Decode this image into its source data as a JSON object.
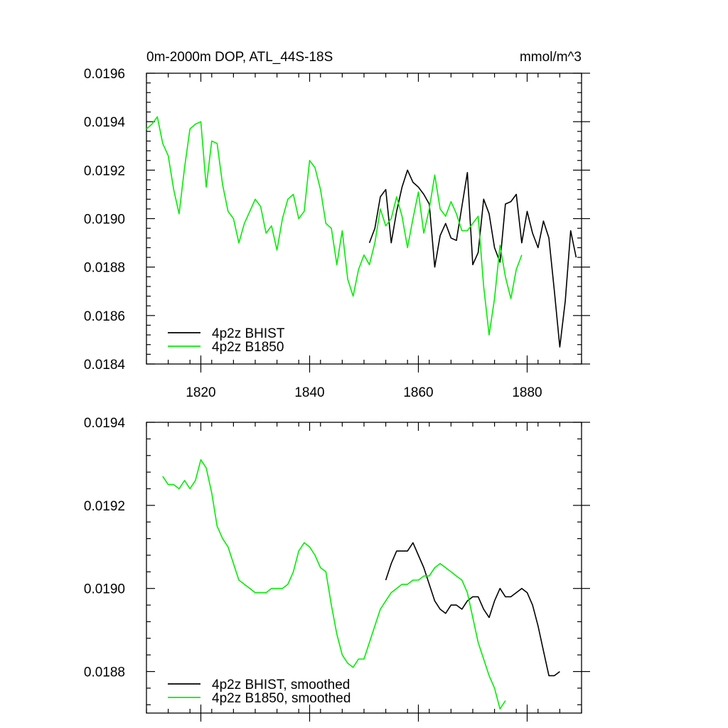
{
  "chart_data": [
    {
      "type": "line",
      "title": "0m-2000m DOP, ATL_44S-18S",
      "units": "mmol/m^3",
      "xlim": [
        1810,
        1890
      ],
      "ylim": [
        0.0184,
        0.0196
      ],
      "xticks": [
        1820,
        1840,
        1860,
        1880
      ],
      "yticks": [
        0.0184,
        0.0186,
        0.0188,
        0.019,
        0.0192,
        0.0194,
        0.0196
      ],
      "ytick_labels": [
        "0.0184",
        "0.0186",
        "0.0188",
        "0.0190",
        "0.0192",
        "0.0194",
        "0.0196"
      ],
      "legend_position": "bottom-left",
      "series": [
        {
          "name": "4p2z BHIST",
          "color": "#000000",
          "x": [
            1851,
            1852,
            1853,
            1854,
            1855,
            1856,
            1857,
            1858,
            1859,
            1860,
            1861,
            1862,
            1863,
            1864,
            1865,
            1866,
            1867,
            1868,
            1869,
            1870,
            1871,
            1872,
            1873,
            1874,
            1875,
            1876,
            1877,
            1878,
            1879,
            1880,
            1881,
            1882,
            1883,
            1884,
            1885,
            1886,
            1887,
            1888,
            1889
          ],
          "y": [
            0.0189,
            0.01896,
            0.01909,
            0.01912,
            0.0189,
            0.01903,
            0.01913,
            0.0192,
            0.01915,
            0.01913,
            0.0191,
            0.01906,
            0.0188,
            0.01893,
            0.01898,
            0.01892,
            0.01891,
            0.01905,
            0.01919,
            0.01881,
            0.01886,
            0.01908,
            0.01902,
            0.01888,
            0.01882,
            0.01906,
            0.01907,
            0.0191,
            0.0189,
            0.01903,
            0.01894,
            0.01888,
            0.01899,
            0.01892,
            0.0187,
            0.01847,
            0.01866,
            0.01895,
            0.01884
          ]
        },
        {
          "name": "4p2z B1850",
          "color": "#00ee00",
          "x": [
            1810,
            1811,
            1812,
            1813,
            1814,
            1815,
            1816,
            1817,
            1818,
            1819,
            1820,
            1821,
            1822,
            1823,
            1824,
            1825,
            1826,
            1827,
            1828,
            1829,
            1830,
            1831,
            1832,
            1833,
            1834,
            1835,
            1836,
            1837,
            1838,
            1839,
            1840,
            1841,
            1842,
            1843,
            1844,
            1845,
            1846,
            1847,
            1848,
            1849,
            1850,
            1851,
            1852,
            1853,
            1854,
            1855,
            1856,
            1857,
            1858,
            1859,
            1860,
            1861,
            1862,
            1863,
            1864,
            1865,
            1866,
            1867,
            1868,
            1869,
            1870,
            1871,
            1872,
            1873,
            1874,
            1875,
            1876,
            1877,
            1878,
            1879
          ],
          "y": [
            0.01937,
            0.01939,
            0.01942,
            0.01931,
            0.01926,
            0.01912,
            0.01902,
            0.01921,
            0.01937,
            0.01939,
            0.0194,
            0.01913,
            0.01932,
            0.01931,
            0.01914,
            0.01903,
            0.019,
            0.0189,
            0.01898,
            0.01903,
            0.01908,
            0.01905,
            0.01894,
            0.01897,
            0.01887,
            0.019,
            0.01908,
            0.0191,
            0.019,
            0.01903,
            0.01924,
            0.01921,
            0.01912,
            0.01898,
            0.01896,
            0.01881,
            0.01895,
            0.01875,
            0.01868,
            0.01879,
            0.01885,
            0.01881,
            0.0189,
            0.01904,
            0.01897,
            0.019,
            0.01909,
            0.01901,
            0.01888,
            0.019,
            0.01911,
            0.01894,
            0.01904,
            0.01918,
            0.01904,
            0.01901,
            0.01907,
            0.01902,
            0.01895,
            0.01895,
            0.01898,
            0.01901,
            0.01872,
            0.01852,
            0.01867,
            0.01889,
            0.01876,
            0.01867,
            0.01879,
            0.01885
          ]
        }
      ]
    },
    {
      "type": "line",
      "xlim": [
        1810,
        1890
      ],
      "ylim": [
        0.0187,
        0.0194
      ],
      "xticks": [
        1820,
        1840,
        1860,
        1880
      ],
      "yticks": [
        0.0188,
        0.019,
        0.0192,
        0.0194
      ],
      "ytick_labels": [
        "0.0188",
        "0.0190",
        "0.0192",
        "0.0194"
      ],
      "legend_position": "bottom-left",
      "series": [
        {
          "name": "4p2z BHIST, smoothed",
          "color": "#000000",
          "x": [
            1854,
            1855,
            1856,
            1857,
            1858,
            1859,
            1860,
            1861,
            1862,
            1863,
            1864,
            1865,
            1866,
            1867,
            1868,
            1869,
            1870,
            1871,
            1872,
            1873,
            1874,
            1875,
            1876,
            1877,
            1878,
            1879,
            1880,
            1881,
            1882,
            1883,
            1884,
            1885,
            1886
          ],
          "y": [
            0.01902,
            0.01906,
            0.01909,
            0.01909,
            0.01909,
            0.01911,
            0.01908,
            0.01905,
            0.01901,
            0.01897,
            0.01895,
            0.01894,
            0.01896,
            0.01896,
            0.01895,
            0.01897,
            0.01898,
            0.01898,
            0.01895,
            0.01893,
            0.01897,
            0.019,
            0.01898,
            0.01898,
            0.01899,
            0.019,
            0.01899,
            0.01896,
            0.01891,
            0.01885,
            0.01879,
            0.01879,
            0.0188
          ]
        },
        {
          "name": "4p2z B1850, smoothed",
          "color": "#00ee00",
          "x": [
            1813,
            1814,
            1815,
            1816,
            1817,
            1818,
            1819,
            1820,
            1821,
            1822,
            1823,
            1824,
            1825,
            1826,
            1827,
            1828,
            1829,
            1830,
            1831,
            1832,
            1833,
            1834,
            1835,
            1836,
            1837,
            1838,
            1839,
            1840,
            1841,
            1842,
            1843,
            1844,
            1845,
            1846,
            1847,
            1848,
            1849,
            1850,
            1851,
            1852,
            1853,
            1854,
            1855,
            1856,
            1857,
            1858,
            1859,
            1860,
            1861,
            1862,
            1863,
            1864,
            1865,
            1866,
            1867,
            1868,
            1869,
            1870,
            1871,
            1872,
            1873,
            1874,
            1875,
            1876
          ],
          "y": [
            0.01927,
            0.01925,
            0.01925,
            0.01924,
            0.01926,
            0.01924,
            0.01926,
            0.01931,
            0.01929,
            0.01923,
            0.01915,
            0.01912,
            0.0191,
            0.01906,
            0.01902,
            0.01901,
            0.019,
            0.01899,
            0.01899,
            0.01899,
            0.019,
            0.019,
            0.019,
            0.01901,
            0.01904,
            0.01909,
            0.01911,
            0.0191,
            0.01908,
            0.01905,
            0.01904,
            0.01896,
            0.01889,
            0.01884,
            0.01882,
            0.01881,
            0.01883,
            0.01883,
            0.01887,
            0.01891,
            0.01895,
            0.01897,
            0.01899,
            0.019,
            0.01901,
            0.01901,
            0.01902,
            0.01902,
            0.01903,
            0.01903,
            0.01905,
            0.01906,
            0.01905,
            0.01904,
            0.01903,
            0.01902,
            0.01899,
            0.01893,
            0.01887,
            0.01883,
            0.01879,
            0.01876,
            0.01871,
            0.01873
          ]
        }
      ]
    }
  ]
}
